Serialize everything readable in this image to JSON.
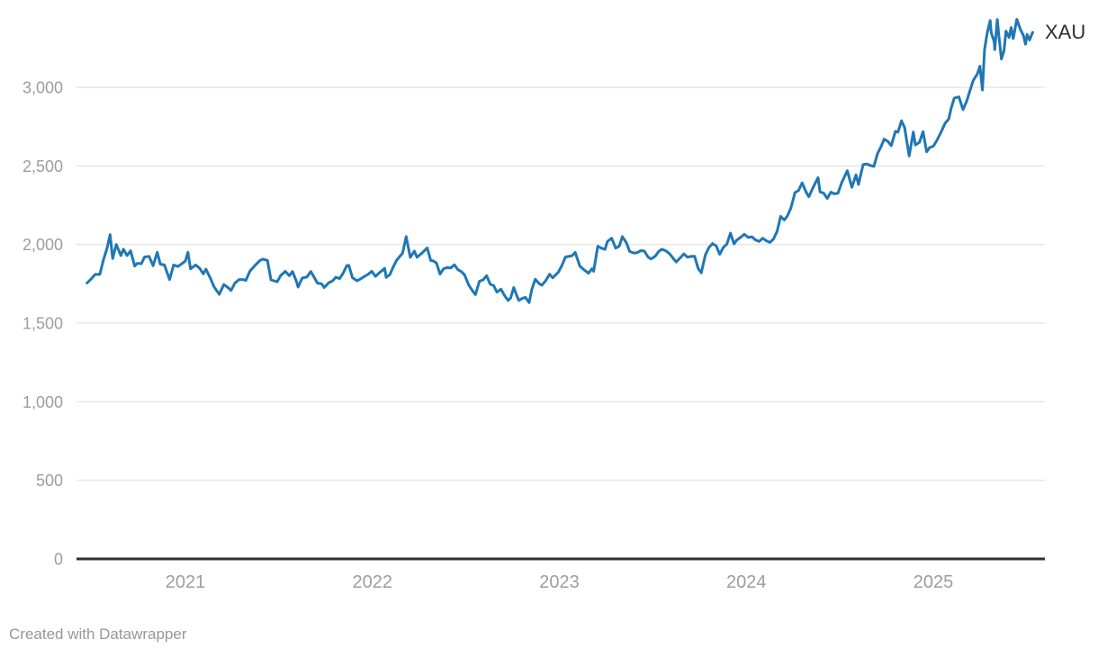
{
  "footer": {
    "attribution": "Created with Datawrapper"
  },
  "colors": {
    "line": "#1f77b4",
    "grid": "#e7e7e7",
    "axis": "#303030",
    "tick_text": "#9d9d9d",
    "series_label_text": "#2f2f2f",
    "attribution_text": "#979797",
    "background": "#ffffff"
  },
  "chart_data": {
    "type": "line",
    "title": "",
    "xlabel": "",
    "ylabel": "",
    "ylim": [
      0,
      3000
    ],
    "grid": "horizontal",
    "legend_position": "end-of-line",
    "y_ticks": [
      {
        "value": 0,
        "label": "0"
      },
      {
        "value": 500,
        "label": "500"
      },
      {
        "value": 1000,
        "label": "1,000"
      },
      {
        "value": 1500,
        "label": "1,500"
      },
      {
        "value": 2000,
        "label": "2,000"
      },
      {
        "value": 2500,
        "label": "2,500"
      },
      {
        "value": 3000,
        "label": "3,000"
      }
    ],
    "x_ticks": [
      {
        "value": 2021,
        "label": "2021"
      },
      {
        "value": 2022,
        "label": "2022"
      },
      {
        "value": 2023,
        "label": "2023"
      },
      {
        "value": 2024,
        "label": "2024"
      },
      {
        "value": 2025,
        "label": "2025"
      }
    ],
    "series": [
      {
        "name": "XAU",
        "points": [
          [
            "2020-06-22",
            1755
          ],
          [
            "2020-06-30",
            1781
          ],
          [
            "2020-07-08",
            1810
          ],
          [
            "2020-07-17",
            1810
          ],
          [
            "2020-07-24",
            1902
          ],
          [
            "2020-07-31",
            1976
          ],
          [
            "2020-08-06",
            2063
          ],
          [
            "2020-08-11",
            1911
          ],
          [
            "2020-08-18",
            2000
          ],
          [
            "2020-08-27",
            1930
          ],
          [
            "2020-09-01",
            1970
          ],
          [
            "2020-09-08",
            1930
          ],
          [
            "2020-09-15",
            1960
          ],
          [
            "2020-09-23",
            1863
          ],
          [
            "2020-09-28",
            1880
          ],
          [
            "2020-10-06",
            1878
          ],
          [
            "2020-10-12",
            1920
          ],
          [
            "2020-10-21",
            1925
          ],
          [
            "2020-10-29",
            1865
          ],
          [
            "2020-11-06",
            1950
          ],
          [
            "2020-11-12",
            1875
          ],
          [
            "2020-11-20",
            1870
          ],
          [
            "2020-11-30",
            1777
          ],
          [
            "2020-12-08",
            1870
          ],
          [
            "2020-12-16",
            1860
          ],
          [
            "2020-12-23",
            1875
          ],
          [
            "2020-12-31",
            1895
          ],
          [
            "2021-01-06",
            1950
          ],
          [
            "2021-01-11",
            1845
          ],
          [
            "2021-01-21",
            1870
          ],
          [
            "2021-01-29",
            1848
          ],
          [
            "2021-02-05",
            1813
          ],
          [
            "2021-02-10",
            1843
          ],
          [
            "2021-02-19",
            1784
          ],
          [
            "2021-02-26",
            1730
          ],
          [
            "2021-03-08",
            1683
          ],
          [
            "2021-03-17",
            1745
          ],
          [
            "2021-03-25",
            1727
          ],
          [
            "2021-03-31",
            1708
          ],
          [
            "2021-04-08",
            1756
          ],
          [
            "2021-04-16",
            1777
          ],
          [
            "2021-04-23",
            1777
          ],
          [
            "2021-04-29",
            1772
          ],
          [
            "2021-05-07",
            1831
          ],
          [
            "2021-05-17",
            1867
          ],
          [
            "2021-05-26",
            1897
          ],
          [
            "2021-06-01",
            1907
          ],
          [
            "2021-06-10",
            1899
          ],
          [
            "2021-06-17",
            1775
          ],
          [
            "2021-06-29",
            1763
          ],
          [
            "2021-07-06",
            1803
          ],
          [
            "2021-07-15",
            1829
          ],
          [
            "2021-07-23",
            1802
          ],
          [
            "2021-07-29",
            1828
          ],
          [
            "2021-08-06",
            1763
          ],
          [
            "2021-08-09",
            1729
          ],
          [
            "2021-08-17",
            1786
          ],
          [
            "2021-08-26",
            1793
          ],
          [
            "2021-09-03",
            1828
          ],
          [
            "2021-09-10",
            1788
          ],
          [
            "2021-09-16",
            1754
          ],
          [
            "2021-09-24",
            1750
          ],
          [
            "2021-09-29",
            1726
          ],
          [
            "2021-10-08",
            1757
          ],
          [
            "2021-10-15",
            1768
          ],
          [
            "2021-10-22",
            1792
          ],
          [
            "2021-10-29",
            1783
          ],
          [
            "2021-11-05",
            1818
          ],
          [
            "2021-11-12",
            1865
          ],
          [
            "2021-11-16",
            1867
          ],
          [
            "2021-11-23",
            1789
          ],
          [
            "2021-12-02",
            1769
          ],
          [
            "2021-12-10",
            1783
          ],
          [
            "2021-12-17",
            1798
          ],
          [
            "2021-12-23",
            1809
          ],
          [
            "2021-12-31",
            1829
          ],
          [
            "2022-01-07",
            1797
          ],
          [
            "2022-01-14",
            1818
          ],
          [
            "2022-01-25",
            1848
          ],
          [
            "2022-01-28",
            1791
          ],
          [
            "2022-02-04",
            1808
          ],
          [
            "2022-02-11",
            1859
          ],
          [
            "2022-02-17",
            1898
          ],
          [
            "2022-02-24",
            1926
          ],
          [
            "2022-03-01",
            1944
          ],
          [
            "2022-03-08",
            2050
          ],
          [
            "2022-03-16",
            1918
          ],
          [
            "2022-03-24",
            1958
          ],
          [
            "2022-03-29",
            1919
          ],
          [
            "2022-04-08",
            1946
          ],
          [
            "2022-04-18",
            1978
          ],
          [
            "2022-04-25",
            1898
          ],
          [
            "2022-04-29",
            1897
          ],
          [
            "2022-05-06",
            1883
          ],
          [
            "2022-05-13",
            1812
          ],
          [
            "2022-05-20",
            1846
          ],
          [
            "2022-05-27",
            1853
          ],
          [
            "2022-06-03",
            1851
          ],
          [
            "2022-06-10",
            1871
          ],
          [
            "2022-06-17",
            1840
          ],
          [
            "2022-06-24",
            1827
          ],
          [
            "2022-06-30",
            1807
          ],
          [
            "2022-07-08",
            1742
          ],
          [
            "2022-07-15",
            1708
          ],
          [
            "2022-07-21",
            1681
          ],
          [
            "2022-07-29",
            1766
          ],
          [
            "2022-08-05",
            1775
          ],
          [
            "2022-08-12",
            1802
          ],
          [
            "2022-08-19",
            1747
          ],
          [
            "2022-08-26",
            1738
          ],
          [
            "2022-09-01",
            1697
          ],
          [
            "2022-09-09",
            1716
          ],
          [
            "2022-09-16",
            1675
          ],
          [
            "2022-09-23",
            1644
          ],
          [
            "2022-09-28",
            1660
          ],
          [
            "2022-10-04",
            1726
          ],
          [
            "2022-10-11",
            1666
          ],
          [
            "2022-10-14",
            1644
          ],
          [
            "2022-10-21",
            1658
          ],
          [
            "2022-10-27",
            1663
          ],
          [
            "2022-11-03",
            1630
          ],
          [
            "2022-11-08",
            1712
          ],
          [
            "2022-11-15",
            1779
          ],
          [
            "2022-11-23",
            1750
          ],
          [
            "2022-11-28",
            1741
          ],
          [
            "2022-12-05",
            1768
          ],
          [
            "2022-12-13",
            1811
          ],
          [
            "2022-12-19",
            1788
          ],
          [
            "2022-12-30",
            1824
          ],
          [
            "2023-01-06",
            1866
          ],
          [
            "2023-01-13",
            1920
          ],
          [
            "2023-01-26",
            1929
          ],
          [
            "2023-02-01",
            1950
          ],
          [
            "2023-02-10",
            1862
          ],
          [
            "2023-02-17",
            1842
          ],
          [
            "2023-02-27",
            1817
          ],
          [
            "2023-03-06",
            1847
          ],
          [
            "2023-03-09",
            1830
          ],
          [
            "2023-03-17",
            1989
          ],
          [
            "2023-03-24",
            1977
          ],
          [
            "2023-03-31",
            1969
          ],
          [
            "2023-04-05",
            2020
          ],
          [
            "2023-04-13",
            2040
          ],
          [
            "2023-04-21",
            1977
          ],
          [
            "2023-04-28",
            1990
          ],
          [
            "2023-05-04",
            2050
          ],
          [
            "2023-05-12",
            2010
          ],
          [
            "2023-05-18",
            1957
          ],
          [
            "2023-05-26",
            1946
          ],
          [
            "2023-06-02",
            1948
          ],
          [
            "2023-06-09",
            1961
          ],
          [
            "2023-06-16",
            1958
          ],
          [
            "2023-06-23",
            1921
          ],
          [
            "2023-06-29",
            1908
          ],
          [
            "2023-07-07",
            1925
          ],
          [
            "2023-07-14",
            1955
          ],
          [
            "2023-07-20",
            1970
          ],
          [
            "2023-07-28",
            1959
          ],
          [
            "2023-08-04",
            1942
          ],
          [
            "2023-08-11",
            1913
          ],
          [
            "2023-08-17",
            1889
          ],
          [
            "2023-08-25",
            1915
          ],
          [
            "2023-09-01",
            1940
          ],
          [
            "2023-09-08",
            1919
          ],
          [
            "2023-09-15",
            1924
          ],
          [
            "2023-09-22",
            1925
          ],
          [
            "2023-09-29",
            1848
          ],
          [
            "2023-10-05",
            1820
          ],
          [
            "2023-10-13",
            1933
          ],
          [
            "2023-10-20",
            1981
          ],
          [
            "2023-10-27",
            2006
          ],
          [
            "2023-11-03",
            1992
          ],
          [
            "2023-11-10",
            1938
          ],
          [
            "2023-11-17",
            1981
          ],
          [
            "2023-11-24",
            2002
          ],
          [
            "2023-12-01",
            2072
          ],
          [
            "2023-12-08",
            2004
          ],
          [
            "2023-12-13",
            2027
          ],
          [
            "2023-12-21",
            2046
          ],
          [
            "2023-12-28",
            2065
          ],
          [
            "2024-01-05",
            2045
          ],
          [
            "2024-01-12",
            2049
          ],
          [
            "2024-01-19",
            2029
          ],
          [
            "2024-01-26",
            2019
          ],
          [
            "2024-02-02",
            2040
          ],
          [
            "2024-02-09",
            2024
          ],
          [
            "2024-02-16",
            2013
          ],
          [
            "2024-02-23",
            2035
          ],
          [
            "2024-03-01",
            2083
          ],
          [
            "2024-03-08",
            2179
          ],
          [
            "2024-03-15",
            2156
          ],
          [
            "2024-03-21",
            2181
          ],
          [
            "2024-03-28",
            2233
          ],
          [
            "2024-04-05",
            2330
          ],
          [
            "2024-04-12",
            2344
          ],
          [
            "2024-04-19",
            2392
          ],
          [
            "2024-04-26",
            2338
          ],
          [
            "2024-05-02",
            2304
          ],
          [
            "2024-05-10",
            2360
          ],
          [
            "2024-05-20",
            2425
          ],
          [
            "2024-05-24",
            2334
          ],
          [
            "2024-05-31",
            2327
          ],
          [
            "2024-06-07",
            2293
          ],
          [
            "2024-06-14",
            2333
          ],
          [
            "2024-06-21",
            2322
          ],
          [
            "2024-06-28",
            2327
          ],
          [
            "2024-07-05",
            2392
          ],
          [
            "2024-07-16",
            2469
          ],
          [
            "2024-07-25",
            2364
          ],
          [
            "2024-08-02",
            2443
          ],
          [
            "2024-08-07",
            2382
          ],
          [
            "2024-08-16",
            2508
          ],
          [
            "2024-08-23",
            2512
          ],
          [
            "2024-08-30",
            2503
          ],
          [
            "2024-09-06",
            2497
          ],
          [
            "2024-09-13",
            2578
          ],
          [
            "2024-09-20",
            2622
          ],
          [
            "2024-09-26",
            2670
          ],
          [
            "2024-10-04",
            2654
          ],
          [
            "2024-10-10",
            2629
          ],
          [
            "2024-10-18",
            2720
          ],
          [
            "2024-10-23",
            2715
          ],
          [
            "2024-10-30",
            2787
          ],
          [
            "2024-11-05",
            2744
          ],
          [
            "2024-11-14",
            2563
          ],
          [
            "2024-11-22",
            2716
          ],
          [
            "2024-11-26",
            2633
          ],
          [
            "2024-12-04",
            2650
          ],
          [
            "2024-12-11",
            2718
          ],
          [
            "2024-12-18",
            2590
          ],
          [
            "2024-12-24",
            2617
          ],
          [
            "2024-12-31",
            2625
          ],
          [
            "2025-01-08",
            2662
          ],
          [
            "2025-01-16",
            2714
          ],
          [
            "2025-01-24",
            2771
          ],
          [
            "2025-01-31",
            2798
          ],
          [
            "2025-02-05",
            2867
          ],
          [
            "2025-02-11",
            2932
          ],
          [
            "2025-02-20",
            2939
          ],
          [
            "2025-02-28",
            2858
          ],
          [
            "2025-03-07",
            2910
          ],
          [
            "2025-03-14",
            2984
          ],
          [
            "2025-03-20",
            3044
          ],
          [
            "2025-03-28",
            3085
          ],
          [
            "2025-04-02",
            3134
          ],
          [
            "2025-04-07",
            2983
          ],
          [
            "2025-04-11",
            3238
          ],
          [
            "2025-04-16",
            3343
          ],
          [
            "2025-04-22",
            3425
          ],
          [
            "2025-04-24",
            3349
          ],
          [
            "2025-04-30",
            3289
          ],
          [
            "2025-05-01",
            3240
          ],
          [
            "2025-05-06",
            3431
          ],
          [
            "2025-05-09",
            3325
          ],
          [
            "2025-05-14",
            3180
          ],
          [
            "2025-05-19",
            3230
          ],
          [
            "2025-05-23",
            3357
          ],
          [
            "2025-05-29",
            3317
          ],
          [
            "2025-06-02",
            3380
          ],
          [
            "2025-06-06",
            3310
          ],
          [
            "2025-06-13",
            3432
          ],
          [
            "2025-06-20",
            3368
          ],
          [
            "2025-06-26",
            3328
          ],
          [
            "2025-06-30",
            3274
          ],
          [
            "2025-07-03",
            3336
          ],
          [
            "2025-07-08",
            3301
          ],
          [
            "2025-07-14",
            3350
          ]
        ]
      }
    ]
  }
}
